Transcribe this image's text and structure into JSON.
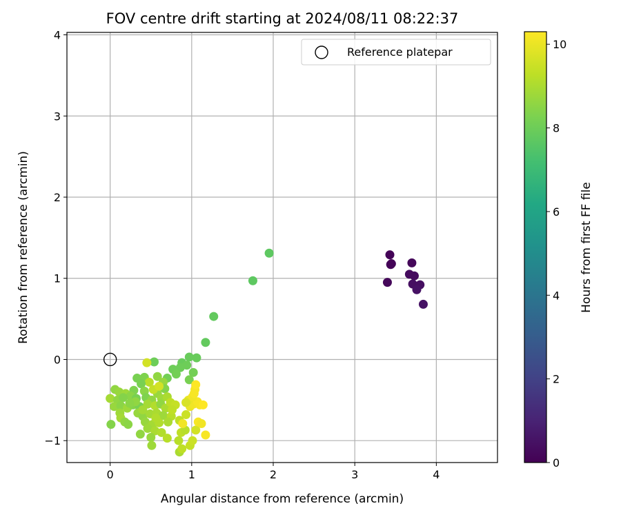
{
  "chart_data": {
    "type": "scatter",
    "title": "FOV centre drift starting at 2024/08/11 08:22:37",
    "xlabel": "Angular distance from reference (arcmin)",
    "ylabel": "Rotation from reference (arcmin)",
    "xlim": [
      -0.53,
      4.75
    ],
    "ylim": [
      -1.27,
      4.03
    ],
    "xticks": [
      0,
      1,
      2,
      3,
      4
    ],
    "yticks": [
      -1,
      0,
      1,
      2,
      3,
      4
    ],
    "grid": true,
    "legend": {
      "placement": "top-right",
      "entries": [
        "Reference platepar"
      ]
    },
    "reference_marker": {
      "label": "Reference platepar",
      "x": 0,
      "y": 0,
      "style": "hollow-circle"
    },
    "colorbar": {
      "label": "Hours from first FF file",
      "colormap": "viridis",
      "range": [
        0,
        10.3
      ],
      "ticks": [
        0,
        2,
        4,
        6,
        8,
        10
      ]
    },
    "points": [
      {
        "x": 3.43,
        "y": 1.29,
        "c": 0.1
      },
      {
        "x": 3.45,
        "y": 1.18,
        "c": 0.1
      },
      {
        "x": 3.44,
        "y": 1.17,
        "c": 0.1
      },
      {
        "x": 3.4,
        "y": 0.95,
        "c": 0.2
      },
      {
        "x": 3.7,
        "y": 1.19,
        "c": 0.2
      },
      {
        "x": 3.67,
        "y": 1.05,
        "c": 0.3
      },
      {
        "x": 3.73,
        "y": 1.03,
        "c": 0.3
      },
      {
        "x": 3.71,
        "y": 0.93,
        "c": 0.4
      },
      {
        "x": 3.8,
        "y": 0.92,
        "c": 0.4
      },
      {
        "x": 3.76,
        "y": 0.86,
        "c": 0.5
      },
      {
        "x": 3.84,
        "y": 0.68,
        "c": 0.5
      },
      {
        "x": 1.95,
        "y": 1.31,
        "c": 7.7
      },
      {
        "x": 1.75,
        "y": 0.97,
        "c": 7.7
      },
      {
        "x": 1.27,
        "y": 0.53,
        "c": 7.8
      },
      {
        "x": 1.17,
        "y": 0.21,
        "c": 7.8
      },
      {
        "x": 1.06,
        "y": 0.02,
        "c": 7.9
      },
      {
        "x": 0.97,
        "y": 0.03,
        "c": 7.9
      },
      {
        "x": 0.88,
        "y": -0.04,
        "c": 7.9
      },
      {
        "x": 0.94,
        "y": -0.07,
        "c": 8.0
      },
      {
        "x": 0.86,
        "y": -0.1,
        "c": 8.0
      },
      {
        "x": 0.77,
        "y": -0.12,
        "c": 8.0
      },
      {
        "x": 1.02,
        "y": -0.16,
        "c": 8.1
      },
      {
        "x": 0.81,
        "y": -0.18,
        "c": 8.1
      },
      {
        "x": 0.7,
        "y": -0.23,
        "c": 8.1
      },
      {
        "x": 0.97,
        "y": -0.25,
        "c": 8.2
      },
      {
        "x": 0.54,
        "y": -0.03,
        "c": 8.0
      },
      {
        "x": 0.45,
        "y": -0.04,
        "c": 9.6
      },
      {
        "x": 0.33,
        "y": -0.23,
        "c": 8.2
      },
      {
        "x": 0.42,
        "y": -0.22,
        "c": 8.3
      },
      {
        "x": 0.58,
        "y": -0.21,
        "c": 8.6
      },
      {
        "x": 0.65,
        "y": -0.28,
        "c": 8.7
      },
      {
        "x": 0.48,
        "y": -0.28,
        "c": 9.2
      },
      {
        "x": 0.38,
        "y": -0.3,
        "c": 8.2
      },
      {
        "x": 0.67,
        "y": -0.36,
        "c": 8.4
      },
      {
        "x": 0.29,
        "y": -0.38,
        "c": 8.3
      },
      {
        "x": 0.42,
        "y": -0.39,
        "c": 8.5
      },
      {
        "x": 0.58,
        "y": -0.42,
        "c": 8.7
      },
      {
        "x": 0.06,
        "y": -0.37,
        "c": 8.6
      },
      {
        "x": 0.11,
        "y": -0.4,
        "c": 8.7
      },
      {
        "x": 0.19,
        "y": -0.42,
        "c": 8.8
      },
      {
        "x": 0.25,
        "y": -0.45,
        "c": 8.5
      },
      {
        "x": 0.0,
        "y": -0.48,
        "c": 8.9
      },
      {
        "x": 0.09,
        "y": -0.5,
        "c": 8.6
      },
      {
        "x": 0.16,
        "y": -0.47,
        "c": 8.4
      },
      {
        "x": 0.32,
        "y": -0.48,
        "c": 8.2
      },
      {
        "x": 0.44,
        "y": -0.47,
        "c": 8.3
      },
      {
        "x": 0.51,
        "y": -0.5,
        "c": 8.6
      },
      {
        "x": 0.63,
        "y": -0.48,
        "c": 8.8
      },
      {
        "x": 0.7,
        "y": -0.46,
        "c": 9.0
      },
      {
        "x": 0.05,
        "y": -0.58,
        "c": 8.7
      },
      {
        "x": 0.13,
        "y": -0.57,
        "c": 8.5
      },
      {
        "x": 0.21,
        "y": -0.6,
        "c": 8.8
      },
      {
        "x": 0.28,
        "y": -0.56,
        "c": 8.4
      },
      {
        "x": 0.36,
        "y": -0.58,
        "c": 8.2
      },
      {
        "x": 0.46,
        "y": -0.55,
        "c": 8.9
      },
      {
        "x": 0.55,
        "y": -0.57,
        "c": 9.1
      },
      {
        "x": 0.62,
        "y": -0.55,
        "c": 8.6
      },
      {
        "x": 0.68,
        "y": -0.6,
        "c": 9.0
      },
      {
        "x": 0.74,
        "y": -0.53,
        "c": 9.3
      },
      {
        "x": 0.12,
        "y": -0.66,
        "c": 8.8
      },
      {
        "x": 0.34,
        "y": -0.66,
        "c": 8.7
      },
      {
        "x": 0.4,
        "y": -0.7,
        "c": 8.6
      },
      {
        "x": 0.49,
        "y": -0.67,
        "c": 8.9
      },
      {
        "x": 0.57,
        "y": -0.66,
        "c": 9.0
      },
      {
        "x": 0.65,
        "y": -0.69,
        "c": 8.8
      },
      {
        "x": 0.75,
        "y": -0.7,
        "c": 9.2
      },
      {
        "x": 0.13,
        "y": -0.72,
        "c": 8.9
      },
      {
        "x": 0.18,
        "y": -0.77,
        "c": 8.6
      },
      {
        "x": 0.22,
        "y": -0.8,
        "c": 8.5
      },
      {
        "x": 0.01,
        "y": -0.8,
        "c": 8.4
      },
      {
        "x": 0.43,
        "y": -0.77,
        "c": 8.7
      },
      {
        "x": 0.52,
        "y": -0.8,
        "c": 8.9
      },
      {
        "x": 0.6,
        "y": -0.78,
        "c": 9.1
      },
      {
        "x": 0.71,
        "y": -0.77,
        "c": 9.0
      },
      {
        "x": 0.85,
        "y": -0.75,
        "c": 9.3
      },
      {
        "x": 0.37,
        "y": -0.92,
        "c": 8.6
      },
      {
        "x": 0.46,
        "y": -0.85,
        "c": 8.8
      },
      {
        "x": 0.55,
        "y": -0.88,
        "c": 9.0
      },
      {
        "x": 0.63,
        "y": -0.9,
        "c": 9.1
      },
      {
        "x": 0.7,
        "y": -0.97,
        "c": 9.2
      },
      {
        "x": 0.5,
        "y": -0.96,
        "c": 8.7
      },
      {
        "x": 0.51,
        "y": -1.06,
        "c": 8.8
      },
      {
        "x": 0.84,
        "y": -1.0,
        "c": 9.2
      },
      {
        "x": 0.85,
        "y": -1.14,
        "c": 9.0
      },
      {
        "x": 0.88,
        "y": -1.1,
        "c": 9.3
      },
      {
        "x": 0.98,
        "y": -1.06,
        "c": 9.4
      },
      {
        "x": 1.01,
        "y": -1.0,
        "c": 9.5
      },
      {
        "x": 0.87,
        "y": -0.9,
        "c": 9.3
      },
      {
        "x": 0.92,
        "y": -0.87,
        "c": 9.2
      },
      {
        "x": 1.05,
        "y": -0.87,
        "c": 9.6
      },
      {
        "x": 0.89,
        "y": -0.79,
        "c": 10.1
      },
      {
        "x": 1.08,
        "y": -0.77,
        "c": 10.2
      },
      {
        "x": 1.12,
        "y": -0.79,
        "c": 10.1
      },
      {
        "x": 1.17,
        "y": -0.93,
        "c": 10.2
      },
      {
        "x": 0.93,
        "y": -0.68,
        "c": 9.5
      },
      {
        "x": 0.98,
        "y": -0.58,
        "c": 10.0
      },
      {
        "x": 1.02,
        "y": -0.55,
        "c": 10.1
      },
      {
        "x": 1.07,
        "y": -0.52,
        "c": 10.2
      },
      {
        "x": 1.1,
        "y": -0.56,
        "c": 10.2
      },
      {
        "x": 1.14,
        "y": -0.56,
        "c": 10.3
      },
      {
        "x": 0.96,
        "y": -0.5,
        "c": 10.0
      },
      {
        "x": 1.01,
        "y": -0.46,
        "c": 10.1
      },
      {
        "x": 1.03,
        "y": -0.42,
        "c": 10.2
      },
      {
        "x": 1.04,
        "y": -0.37,
        "c": 10.2
      },
      {
        "x": 1.05,
        "y": -0.31,
        "c": 10.3
      },
      {
        "x": 0.93,
        "y": -0.53,
        "c": 9.7
      },
      {
        "x": 0.8,
        "y": -0.56,
        "c": 9.4
      },
      {
        "x": 0.76,
        "y": -0.62,
        "c": 9.3
      },
      {
        "x": 0.4,
        "y": -0.62,
        "c": 8.9
      },
      {
        "x": 0.31,
        "y": -0.52,
        "c": 8.6
      },
      {
        "x": 0.24,
        "y": -0.54,
        "c": 8.5
      },
      {
        "x": 0.53,
        "y": -0.37,
        "c": 9.4
      },
      {
        "x": 0.6,
        "y": -0.33,
        "c": 9.6
      },
      {
        "x": 0.56,
        "y": -0.72,
        "c": 9.1
      }
    ]
  }
}
